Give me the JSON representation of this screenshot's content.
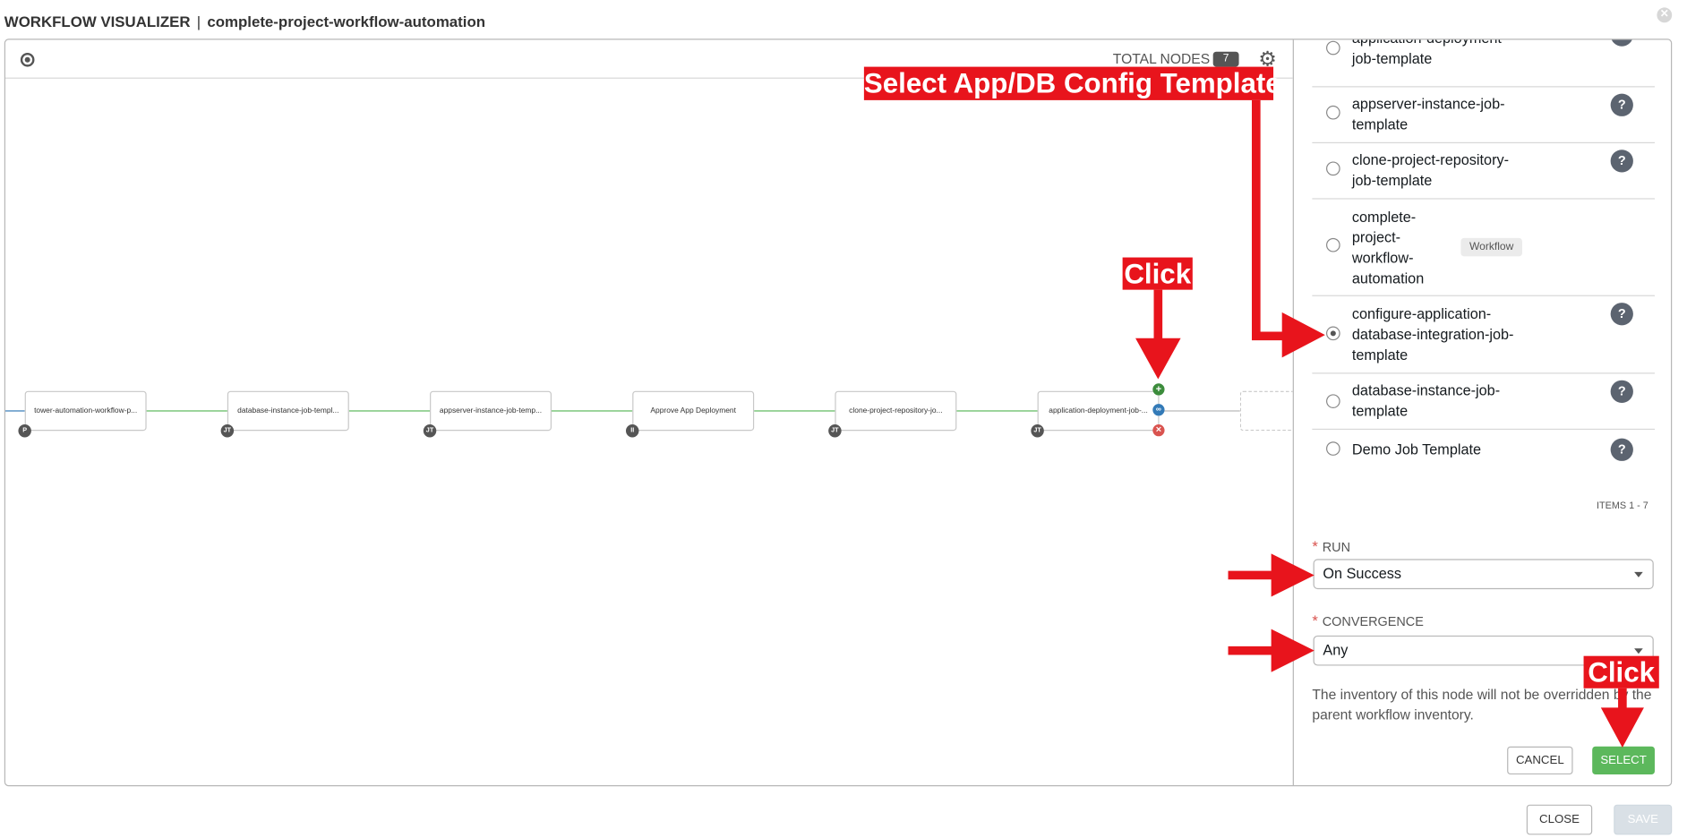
{
  "header": {
    "title": "WORKFLOW VISUALIZER",
    "separator": "|",
    "workflow_name": "complete-project-workflow-automation",
    "close_icon_glyph": "✕"
  },
  "toolbar": {
    "total_nodes_label": "TOTAL NODES",
    "total_nodes_count": "7",
    "settings_icon": "gear-icon",
    "compass_icon": "compass-icon"
  },
  "graph": {
    "nodes": [
      {
        "label": "tower-automation-workflow-p...",
        "badge": "P"
      },
      {
        "label": "database-instance-job-templ...",
        "badge": "JT"
      },
      {
        "label": "appserver-instance-job-temp...",
        "badge": "JT"
      },
      {
        "label": "Approve App Deployment",
        "badge": "II"
      },
      {
        "label": "clone-project-repository-jo...",
        "badge": "JT"
      },
      {
        "label": "application-deployment-job-...",
        "badge": "JT"
      }
    ],
    "actions": {
      "add": "+",
      "link": "∞",
      "remove": "✕"
    },
    "colors": {
      "success_link": "#5cb85c",
      "start_link": "#337ab7",
      "pending_link": "#b7b7b7",
      "add": "#3c8c3c",
      "link": "#337ab7",
      "remove": "#d9534f"
    }
  },
  "panel": {
    "templates": [
      {
        "name": "application-deployment-\njob-template",
        "tag": "",
        "selected": false
      },
      {
        "name": "appserver-instance-job-\ntemplate",
        "tag": "",
        "selected": false
      },
      {
        "name": "clone-project-repository-\njob-template",
        "tag": "",
        "selected": false
      },
      {
        "name": "complete-\nproject-\nworkflow-\nautomation",
        "tag": "Workflow",
        "selected": false
      },
      {
        "name": "configure-application-\ndatabase-integration-job-\ntemplate",
        "tag": "",
        "selected": true
      },
      {
        "name": "database-instance-job-\ntemplate",
        "tag": "",
        "selected": false
      },
      {
        "name": "Demo Job Template",
        "tag": "",
        "selected": false
      }
    ],
    "help_glyph": "?",
    "items_label": "ITEMS  1 - 7",
    "run_label": "RUN",
    "run_value": "On Success",
    "convergence_label": "CONVERGENCE",
    "convergence_value": "Any",
    "required_marker": "*",
    "hint": "The inventory of this node will not be overridden by the parent workflow inventory.",
    "cancel_label": "CANCEL",
    "select_label": "SELECT"
  },
  "footer": {
    "close_label": "CLOSE",
    "save_label": "SAVE"
  },
  "annotations": {
    "select_template": "Select App/DB Config Template",
    "click_1": "Click",
    "click_2": "Click",
    "color": "#e8141c"
  }
}
